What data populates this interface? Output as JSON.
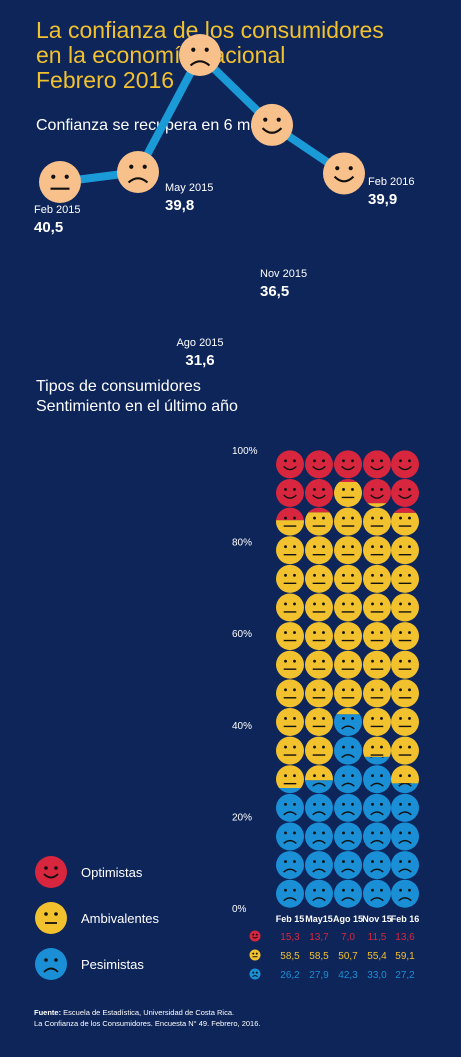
{
  "header": {
    "title_lines": [
      "La confianza de los consumidores",
      "en la economía nacional",
      "Febrero 2016"
    ]
  },
  "colors": {
    "background": "#0e2559",
    "title": "#f2c12e",
    "line": "#1a9ad6",
    "face": "#f8c08a",
    "optimistas": "#d7263d",
    "ambivalentes": "#f2c12e",
    "pesimistas": "#1a8fd6"
  },
  "chart_data": [
    {
      "type": "line",
      "title": "Confianza se recupera en 6 meses",
      "x": [
        "Feb 2015",
        "May 2015",
        "Ago 2015",
        "Nov 2015",
        "Feb 2016"
      ],
      "series": [
        {
          "values": [
            40.5,
            39.8,
            31.6,
            36.5,
            39.9
          ]
        }
      ],
      "value_labels": [
        "40,5",
        "39,8",
        "31,6",
        "36,5",
        "39,9"
      ],
      "markers": [
        "neutral-face",
        "sad-face",
        "sad-face",
        "happy-face",
        "happy-face"
      ]
    },
    {
      "type": "bar",
      "stacked": true,
      "title_lines": [
        "Tipos de consumidores",
        "Sentimiento en el último año"
      ],
      "categories": [
        "Feb 15",
        "May15",
        "Ago 15",
        "Nov 15",
        "Feb 16"
      ],
      "yticks": [
        "0%",
        "20%",
        "40%",
        "60%",
        "80%",
        "100%"
      ],
      "ylim": [
        0,
        100
      ],
      "series": [
        {
          "name": "Pesimistas",
          "values": [
            26.2,
            27.9,
            42.3,
            33.0,
            27.2
          ],
          "labels": [
            "26,2",
            "27,9",
            "42,3",
            "33,0",
            "27,2"
          ],
          "icon": "sad-face"
        },
        {
          "name": "Ambivalentes",
          "values": [
            58.5,
            58.5,
            50.7,
            55.4,
            59.1
          ],
          "labels": [
            "58,5",
            "58,5",
            "50,7",
            "55,4",
            "59,1"
          ],
          "icon": "neutral-face"
        },
        {
          "name": "Optimistas",
          "values": [
            15.3,
            13.7,
            7.0,
            11.5,
            13.6
          ],
          "labels": [
            "15,3",
            "13,7",
            "7,0",
            "11,5",
            "13,6"
          ],
          "icon": "happy-face"
        }
      ]
    }
  ],
  "legend": [
    {
      "label": "Optimistas",
      "icon": "happy-face",
      "color": "#d7263d"
    },
    {
      "label": "Ambivalentes",
      "icon": "neutral-face",
      "color": "#f2c12e"
    },
    {
      "label": "Pesimistas",
      "icon": "sad-face",
      "color": "#1a8fd6"
    }
  ],
  "source": {
    "label": "Fuente:",
    "line1": " Escuela de Estadística, Universidad de Costa Rica.",
    "line2": "La Confianza de los Consumidores. Encuesta N° 49. Febrero, 2016."
  }
}
